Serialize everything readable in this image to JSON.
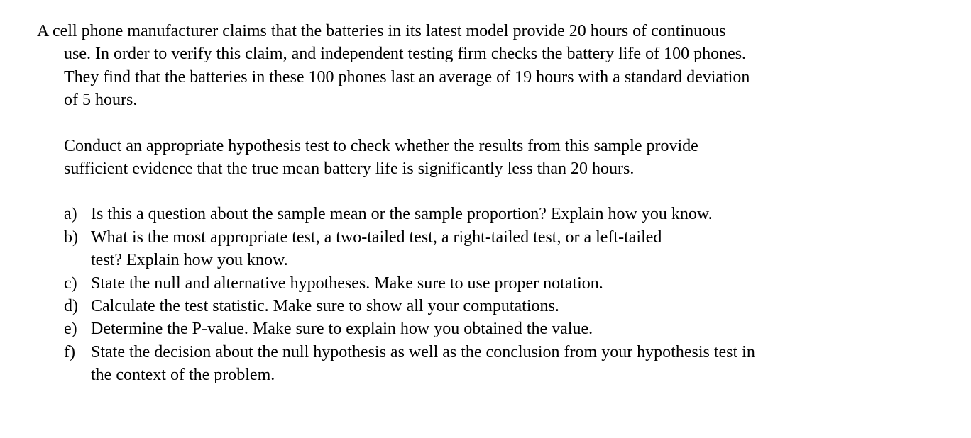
{
  "intro": {
    "line1": "A cell phone manufacturer claims that the batteries in its latest model provide 20 hours of continuous",
    "line2": "use. In order to verify this claim, and independent testing firm checks the battery life of 100 phones.",
    "line3": "They find that the batteries in these 100 phones last an average of 19 hours with a standard deviation",
    "line4": "of 5 hours."
  },
  "instruction": {
    "line1": "Conduct an appropriate hypothesis test to check whether the results from this sample provide",
    "line2": "sufficient evidence that the true mean battery life is significantly less than 20 hours."
  },
  "questions": [
    {
      "label": "a)",
      "lines": [
        "Is this a question about the sample mean or the sample proportion? Explain how  you know."
      ]
    },
    {
      "label": "b)",
      "lines": [
        "What is the most appropriate test, a two-tailed test, a right-tailed test, or a left-tailed",
        "test? Explain how  you know."
      ]
    },
    {
      "label": "c)",
      "lines": [
        "State the null and alternative hypotheses. Make sure to use proper notation."
      ]
    },
    {
      "label": "d)",
      "lines": [
        "Calculate the test statistic. Make sure to show all your computations."
      ]
    },
    {
      "label": "e)",
      "lines": [
        "Determine the P-value. Make sure to explain how you obtained the value."
      ]
    },
    {
      "label": "f)",
      "lines": [
        "State the decision about the null hypothesis as well as the conclusion from your hypothesis test in",
        "the context of the problem."
      ]
    }
  ]
}
